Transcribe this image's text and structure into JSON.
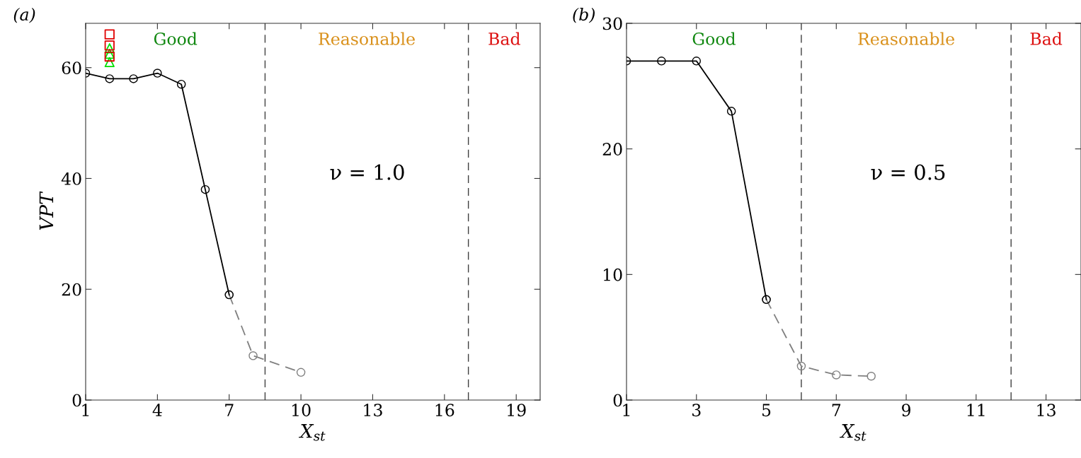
{
  "chart_data": [
    {
      "type": "line",
      "ylabel": "VPT",
      "xlabel": "X$_{st}$",
      "annotations": [
        "(a)",
        "ν = 1.0",
        "Good",
        "Reasonable",
        "Bad"
      ],
      "xlim": [
        1,
        20
      ],
      "xticks": [
        1,
        4,
        7,
        10,
        13,
        16,
        19
      ],
      "ylim": [
        0,
        68
      ],
      "yticks": [
        0,
        20,
        40,
        60
      ],
      "grid": false,
      "legend": false,
      "series": [
        {
          "color": "#808080",
          "line_style": "dashed",
          "marker": "circle",
          "x": [
            7,
            8,
            10
          ],
          "values": [
            19,
            8,
            5
          ]
        },
        {
          "color": "#000000",
          "line_style": "solid",
          "marker": "circle",
          "x": [
            1,
            2,
            3,
            4,
            5,
            6,
            7
          ],
          "values": [
            59,
            58,
            58,
            59,
            57,
            38,
            19
          ]
        },
        {
          "type": "scatter",
          "color": "#00e000",
          "marker": "triangle",
          "x": [
            2,
            2,
            2
          ],
          "values": [
            63.5,
            62.5,
            61
          ]
        },
        {
          "type": "scatter",
          "color": "#e00000",
          "marker": "square",
          "x": [
            2,
            2,
            2
          ],
          "values": [
            66,
            64,
            62
          ]
        }
      ],
      "ref_lines": [
        {
          "axis": "x",
          "value": 8.5,
          "color": "#404040",
          "line_style": "dashed"
        },
        {
          "axis": "x",
          "value": 17,
          "color": "#404040",
          "line_style": "dashed"
        }
      ]
    },
    {
      "type": "line",
      "xlabel": "X$_{st}$",
      "annotations": [
        "(b)",
        "ν = 0.5",
        "Good",
        "Reasonable",
        "Bad"
      ],
      "xlim": [
        1,
        14
      ],
      "xticks": [
        1,
        3,
        5,
        7,
        9,
        11,
        13
      ],
      "ylim": [
        0,
        30
      ],
      "yticks": [
        0,
        10,
        20,
        30
      ],
      "grid": false,
      "legend": false,
      "series": [
        {
          "color": "#808080",
          "line_style": "dashed",
          "marker": "circle",
          "x": [
            5,
            6,
            7,
            8
          ],
          "values": [
            8,
            2.7,
            2.0,
            1.9
          ]
        },
        {
          "color": "#000000",
          "line_style": "solid",
          "marker": "circle",
          "x": [
            1,
            2,
            3,
            4,
            5
          ],
          "values": [
            27,
            27,
            27,
            23,
            8
          ]
        }
      ],
      "ref_lines": [
        {
          "axis": "x",
          "value": 6,
          "color": "#404040",
          "line_style": "dashed"
        },
        {
          "axis": "x",
          "value": 12,
          "color": "#404040",
          "line_style": "dashed"
        }
      ]
    }
  ]
}
